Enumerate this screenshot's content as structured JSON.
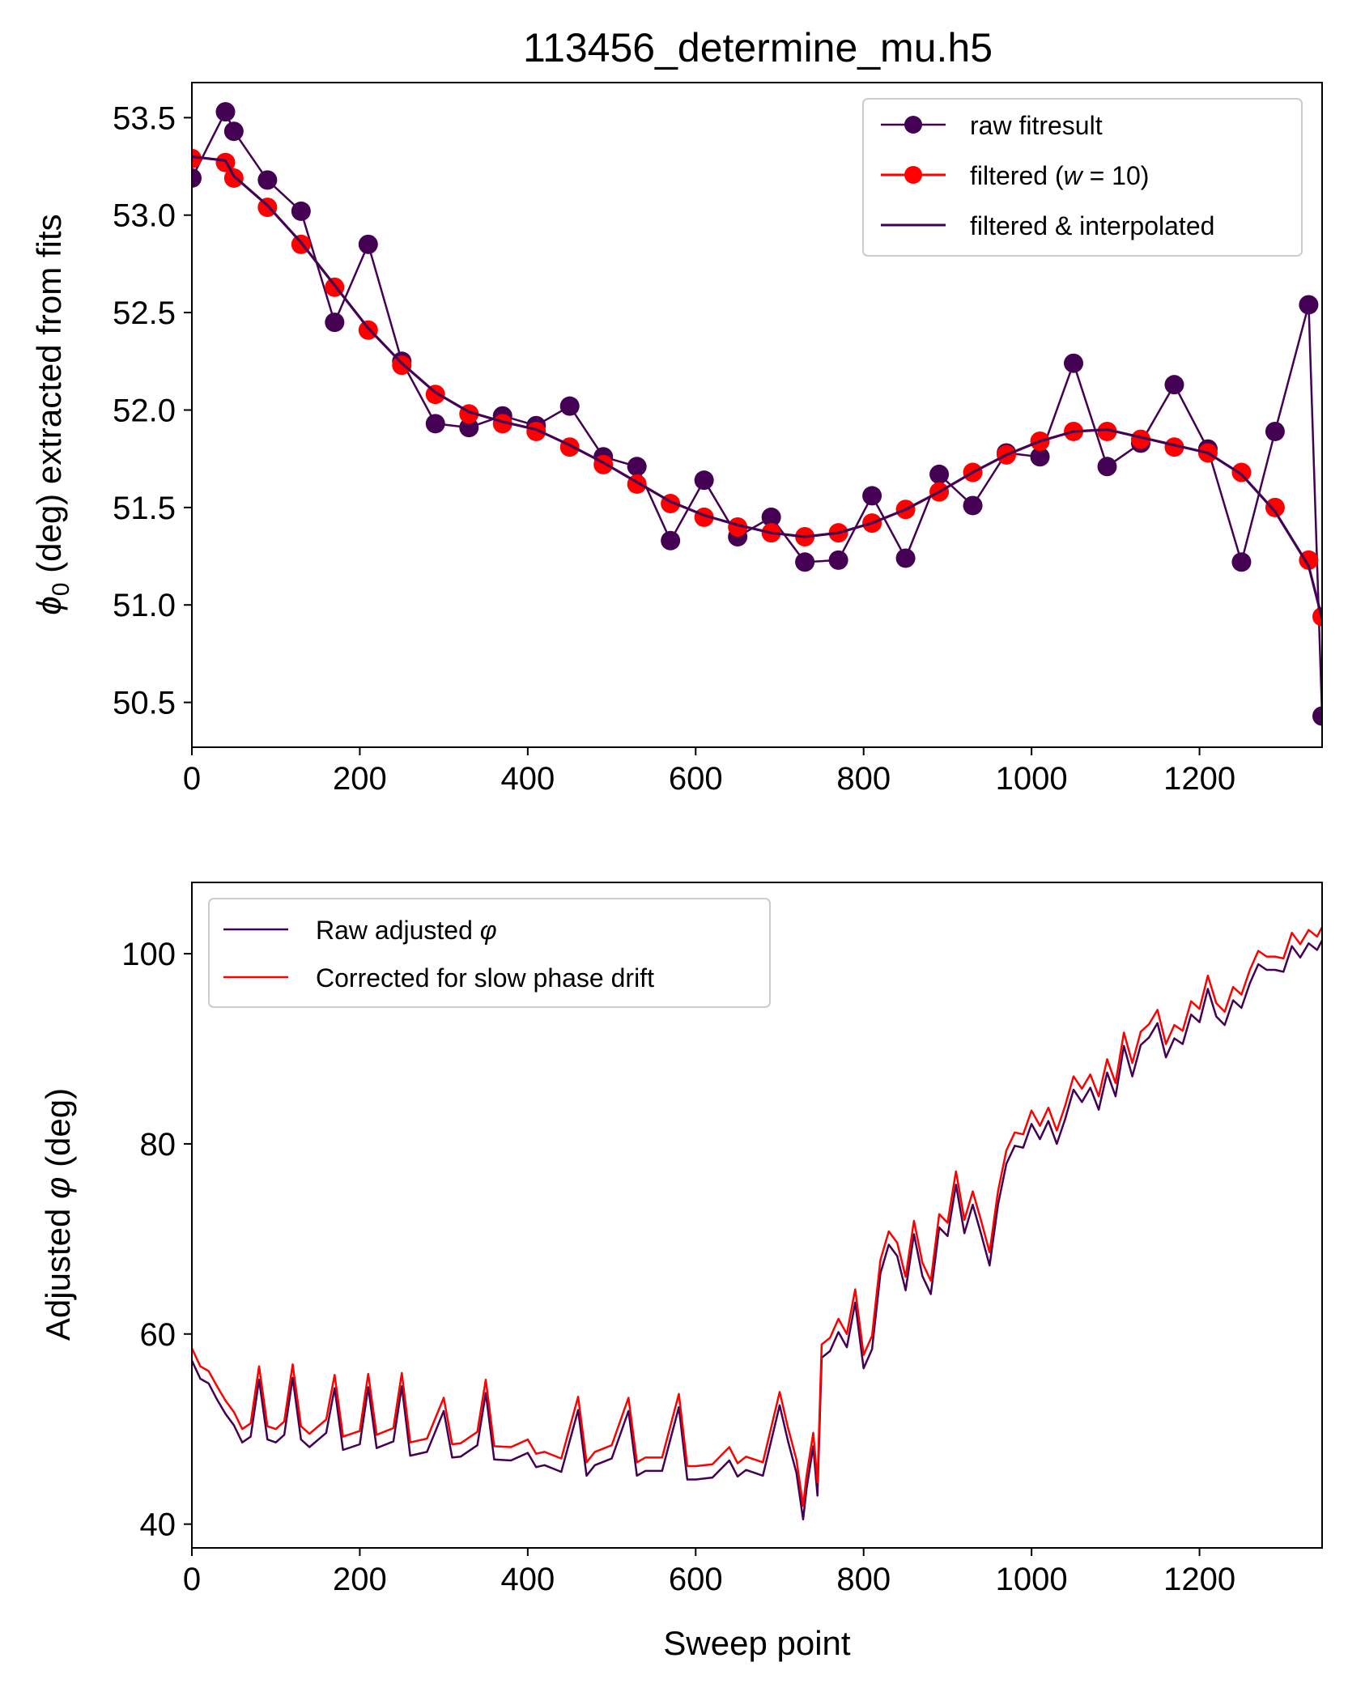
{
  "title": "113456_determine_mu.h5",
  "colors": {
    "raw": "#440154",
    "filtered": "#ff0000"
  },
  "chart_data": [
    {
      "type": "line",
      "title": "113456_determine_mu.h5",
      "xlabel": "",
      "ylabel": "ϕ₀ (deg) extracted from fits",
      "ylabel_parts": {
        "symbol": "ϕ",
        "sub": "0",
        "rest": " (deg) extracted from fits"
      },
      "xlim": [
        0,
        1346
      ],
      "ylim": [
        50.27,
        53.68
      ],
      "xticks": [
        0,
        200,
        400,
        600,
        800,
        1000,
        1200
      ],
      "xtick_labels": [
        "0",
        "200",
        "400",
        "600",
        "800",
        "1000",
        "1200"
      ],
      "yticks": [
        50.5,
        51.0,
        51.5,
        52.0,
        52.5,
        53.0,
        53.5
      ],
      "ytick_labels": [
        "50.5",
        "51.0",
        "51.5",
        "52.0",
        "52.5",
        "53.0",
        "53.5"
      ],
      "grid": false,
      "legend_position": "top-right",
      "legend": [
        {
          "label": "raw fitresult",
          "style": "line-marker",
          "color": "#440154"
        },
        {
          "label": "filtered (w = 10)",
          "label_parts": {
            "pre": "filtered (",
            "math": "w",
            "post": " = 10)"
          },
          "style": "marker",
          "color": "#ff0000"
        },
        {
          "label": "filtered & interpolated",
          "style": "line",
          "color": "#440154"
        }
      ],
      "series": [
        {
          "name": "raw fitresult",
          "color": "#440154",
          "x": [
            0,
            40,
            50,
            90,
            130,
            170,
            210,
            250,
            290,
            330,
            370,
            410,
            450,
            490,
            530,
            570,
            610,
            650,
            690,
            730,
            770,
            810,
            850,
            890,
            930,
            970,
            1010,
            1050,
            1090,
            1130,
            1170,
            1210,
            1250,
            1290,
            1330,
            1346
          ],
          "y": [
            53.19,
            53.53,
            53.43,
            53.18,
            53.02,
            52.45,
            52.85,
            52.25,
            51.93,
            51.91,
            51.97,
            51.92,
            52.02,
            51.76,
            51.71,
            51.33,
            51.64,
            51.35,
            51.45,
            51.22,
            51.23,
            51.56,
            51.24,
            51.67,
            51.51,
            51.78,
            51.76,
            52.24,
            51.71,
            51.83,
            52.13,
            51.8,
            51.22,
            51.89,
            52.54,
            50.43
          ]
        },
        {
          "name": "filtered (w = 10)",
          "color": "#ff0000",
          "x": [
            0,
            40,
            50,
            90,
            130,
            170,
            210,
            250,
            290,
            330,
            370,
            410,
            450,
            490,
            530,
            570,
            610,
            650,
            690,
            730,
            770,
            810,
            850,
            890,
            930,
            970,
            1010,
            1050,
            1090,
            1130,
            1170,
            1210,
            1250,
            1290,
            1330,
            1346
          ],
          "y": [
            53.29,
            53.27,
            53.19,
            53.04,
            52.85,
            52.63,
            52.41,
            52.23,
            52.08,
            51.98,
            51.93,
            51.89,
            51.81,
            51.72,
            51.62,
            51.52,
            51.45,
            51.4,
            51.37,
            51.35,
            51.37,
            51.42,
            51.49,
            51.58,
            51.68,
            51.77,
            51.84,
            51.89,
            51.89,
            51.85,
            51.81,
            51.78,
            51.68,
            51.5,
            51.23,
            50.94
          ]
        },
        {
          "name": "filtered & interpolated",
          "color": "#440154",
          "x": [
            0,
            40,
            50,
            90,
            130,
            170,
            210,
            250,
            290,
            330,
            370,
            410,
            450,
            490,
            530,
            570,
            610,
            650,
            690,
            730,
            770,
            810,
            850,
            890,
            930,
            970,
            1010,
            1050,
            1090,
            1130,
            1170,
            1210,
            1250,
            1290,
            1330,
            1346
          ],
          "y": [
            53.3,
            53.28,
            53.2,
            53.05,
            52.86,
            52.64,
            52.42,
            52.24,
            52.09,
            51.99,
            51.94,
            51.9,
            51.82,
            51.73,
            51.63,
            51.53,
            51.46,
            51.41,
            51.37,
            51.35,
            51.37,
            51.42,
            51.49,
            51.58,
            51.68,
            51.77,
            51.84,
            51.89,
            51.9,
            51.86,
            51.82,
            51.78,
            51.67,
            51.48,
            51.2,
            50.93
          ]
        }
      ]
    },
    {
      "type": "line",
      "xlabel": "Sweep point",
      "ylabel": "Adjusted φ (deg)",
      "ylabel_parts": {
        "pre": "Adjusted ",
        "math": "φ",
        "post": " (deg)"
      },
      "xlim": [
        0,
        1346
      ],
      "ylim": [
        37.5,
        107.5
      ],
      "xticks": [
        0,
        200,
        400,
        600,
        800,
        1000,
        1200
      ],
      "xtick_labels": [
        "0",
        "200",
        "400",
        "600",
        "800",
        "1000",
        "1200"
      ],
      "yticks": [
        40,
        60,
        80,
        100
      ],
      "ytick_labels": [
        "40",
        "60",
        "80",
        "100"
      ],
      "grid": false,
      "legend_position": "top-left",
      "legend": [
        {
          "label": "Raw adjusted φ",
          "label_parts": {
            "pre": "Raw adjusted ",
            "math": "φ",
            "post": ""
          },
          "style": "line",
          "color": "#440154"
        },
        {
          "label": "Corrected for slow phase drift",
          "style": "line",
          "color": "#ff0000"
        }
      ],
      "series": [
        {
          "name": "Raw adjusted φ",
          "color": "#440154",
          "x": [
            0,
            10,
            20,
            30,
            40,
            50,
            60,
            70,
            80,
            90,
            100,
            110,
            120,
            130,
            140,
            160,
            170,
            180,
            200,
            210,
            220,
            240,
            250,
            260,
            280,
            300,
            310,
            320,
            340,
            350,
            360,
            380,
            400,
            410,
            420,
            440,
            460,
            470,
            480,
            500,
            520,
            530,
            540,
            560,
            580,
            590,
            600,
            620,
            640,
            650,
            660,
            680,
            700,
            710,
            720,
            728,
            732,
            740,
            745,
            750,
            760,
            770,
            780,
            790,
            800,
            810,
            820,
            830,
            840,
            850,
            860,
            870,
            880,
            890,
            900,
            910,
            920,
            930,
            940,
            950,
            960,
            970,
            980,
            990,
            1000,
            1010,
            1020,
            1030,
            1040,
            1050,
            1060,
            1070,
            1080,
            1090,
            1100,
            1110,
            1120,
            1130,
            1140,
            1150,
            1160,
            1170,
            1180,
            1190,
            1200,
            1210,
            1220,
            1230,
            1240,
            1250,
            1260,
            1270,
            1280,
            1290,
            1300,
            1310,
            1320,
            1330,
            1340,
            1346
          ],
          "y": [
            57.2,
            55.3,
            54.8,
            53.1,
            51.6,
            50.4,
            48.6,
            49.2,
            55.2,
            48.9,
            48.6,
            49.4,
            55.4,
            48.9,
            48.1,
            49.6,
            54.3,
            47.8,
            48.4,
            54.4,
            48.0,
            48.7,
            54.5,
            47.2,
            47.6,
            51.9,
            47.0,
            47.1,
            48.3,
            53.8,
            46.8,
            46.7,
            47.5,
            46.0,
            46.2,
            45.5,
            52.0,
            45.1,
            46.2,
            46.9,
            51.9,
            45.1,
            45.6,
            45.6,
            52.3,
            44.7,
            44.7,
            44.9,
            46.7,
            45.0,
            45.7,
            45.1,
            52.5,
            48.7,
            45.4,
            40.5,
            43.7,
            48.2,
            43.0,
            57.5,
            58.2,
            60.2,
            58.6,
            63.3,
            56.4,
            58.4,
            66.4,
            69.4,
            68.2,
            64.6,
            70.5,
            66.1,
            64.2,
            71.2,
            70.3,
            75.7,
            70.6,
            73.6,
            70.5,
            67.2,
            73.6,
            77.9,
            79.8,
            79.6,
            82.1,
            80.5,
            82.4,
            80.0,
            82.6,
            85.7,
            84.4,
            85.9,
            83.6,
            87.5,
            85.0,
            90.3,
            87.1,
            90.4,
            91.2,
            92.7,
            89.1,
            91.1,
            90.5,
            93.6,
            92.8,
            96.3,
            93.4,
            92.5,
            95.1,
            94.3,
            96.9,
            98.9,
            98.3,
            98.3,
            98.1,
            100.8,
            99.6,
            101.1,
            100.4,
            101.4
          ]
        },
        {
          "name": "Corrected for slow phase drift",
          "color": "#ff0000",
          "x": [
            0,
            10,
            20,
            30,
            40,
            50,
            60,
            70,
            80,
            90,
            100,
            110,
            120,
            130,
            140,
            160,
            170,
            180,
            200,
            210,
            220,
            240,
            250,
            260,
            280,
            300,
            310,
            320,
            340,
            350,
            360,
            380,
            400,
            410,
            420,
            440,
            460,
            470,
            480,
            500,
            520,
            530,
            540,
            560,
            580,
            590,
            600,
            620,
            640,
            650,
            660,
            680,
            700,
            710,
            720,
            728,
            732,
            740,
            745,
            750,
            760,
            770,
            780,
            790,
            800,
            810,
            820,
            830,
            840,
            850,
            860,
            870,
            880,
            890,
            900,
            910,
            920,
            930,
            940,
            950,
            960,
            970,
            980,
            990,
            1000,
            1010,
            1020,
            1030,
            1040,
            1050,
            1060,
            1070,
            1080,
            1090,
            1100,
            1110,
            1120,
            1130,
            1140,
            1150,
            1160,
            1170,
            1180,
            1190,
            1200,
            1210,
            1220,
            1230,
            1240,
            1250,
            1260,
            1270,
            1280,
            1290,
            1300,
            1310,
            1320,
            1330,
            1340,
            1346
          ],
          "y": [
            58.5,
            56.6,
            56.1,
            54.5,
            53.0,
            51.8,
            50.0,
            50.6,
            56.6,
            50.3,
            50.0,
            50.8,
            56.8,
            50.3,
            49.5,
            51.0,
            55.7,
            49.2,
            49.8,
            55.8,
            49.4,
            50.1,
            55.9,
            48.6,
            49.0,
            53.3,
            48.4,
            48.5,
            49.7,
            55.2,
            48.2,
            48.1,
            48.9,
            47.4,
            47.6,
            46.9,
            53.4,
            46.5,
            47.6,
            48.3,
            53.3,
            46.5,
            47.0,
            47.0,
            53.7,
            46.1,
            46.1,
            46.3,
            48.1,
            46.4,
            47.1,
            46.5,
            53.9,
            50.1,
            46.8,
            41.9,
            45.1,
            49.6,
            44.4,
            58.9,
            59.6,
            61.6,
            60.0,
            64.7,
            57.8,
            59.8,
            67.8,
            70.8,
            69.6,
            66.0,
            71.9,
            67.5,
            65.6,
            72.6,
            71.7,
            77.1,
            72.0,
            75.0,
            71.9,
            68.6,
            75.0,
            79.3,
            81.2,
            81.0,
            83.5,
            81.9,
            83.8,
            81.4,
            84.0,
            87.1,
            85.8,
            87.3,
            85.0,
            88.9,
            86.4,
            91.7,
            88.5,
            91.8,
            92.6,
            94.1,
            90.5,
            92.5,
            91.9,
            95.0,
            94.2,
            97.7,
            94.8,
            93.9,
            96.5,
            95.7,
            98.3,
            100.3,
            99.7,
            99.7,
            99.5,
            102.2,
            101.0,
            102.5,
            101.8,
            102.8
          ]
        }
      ]
    }
  ]
}
